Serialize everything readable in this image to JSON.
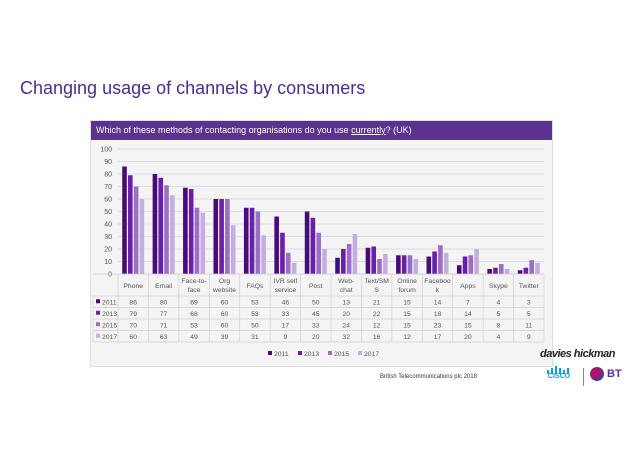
{
  "slide": {
    "title": "Changing usage of channels by consumers",
    "credit": "British Telecommunications plc 2018"
  },
  "chart_header": {
    "prefix": "Which of these methods of contacting organisations do you use ",
    "underlined": "currently",
    "suffix": "? (UK)"
  },
  "brands": {
    "davies": "davies hickman",
    "cisco": "CISCO",
    "bt": "BT"
  },
  "chart_data": {
    "type": "bar",
    "title": "Which of these methods of contacting organisations do you use currently? (UK)",
    "categories": [
      [
        "Phone"
      ],
      [
        "Email"
      ],
      [
        "Face-to-",
        "face"
      ],
      [
        "Org",
        "website"
      ],
      [
        "FAQs"
      ],
      [
        "IVR self",
        "service"
      ],
      [
        "Post"
      ],
      [
        "Web-",
        "chat"
      ],
      [
        "Text/SM",
        "S"
      ],
      [
        "Online",
        "forum"
      ],
      [
        "Faceboo",
        "k"
      ],
      [
        "Apps"
      ],
      [
        "Skype"
      ],
      [
        "Twitter"
      ]
    ],
    "series": [
      {
        "name": "2011",
        "color": "#4a0b7a",
        "values": [
          86,
          80,
          69,
          60,
          53,
          46,
          50,
          13,
          21,
          15,
          14,
          7,
          4,
          3
        ]
      },
      {
        "name": "2013",
        "color": "#6a1fa8",
        "values": [
          79,
          77,
          68,
          60,
          53,
          33,
          45,
          20,
          22,
          15,
          18,
          14,
          5,
          5
        ]
      },
      {
        "name": "2015",
        "color": "#9a6fc4",
        "values": [
          70,
          71,
          53,
          60,
          50,
          17,
          33,
          24,
          12,
          15,
          23,
          15,
          8,
          11
        ]
      },
      {
        "name": "2017",
        "color": "#c4aee0",
        "values": [
          60,
          63,
          49,
          39,
          31,
          9,
          20,
          32,
          16,
          12,
          17,
          20,
          4,
          9
        ]
      }
    ],
    "ylim": [
      0,
      100
    ],
    "yticks": [
      0,
      10,
      20,
      30,
      40,
      50,
      60,
      70,
      80,
      90,
      100
    ],
    "gridlines": true,
    "legend": "bottom",
    "data_table": true
  }
}
